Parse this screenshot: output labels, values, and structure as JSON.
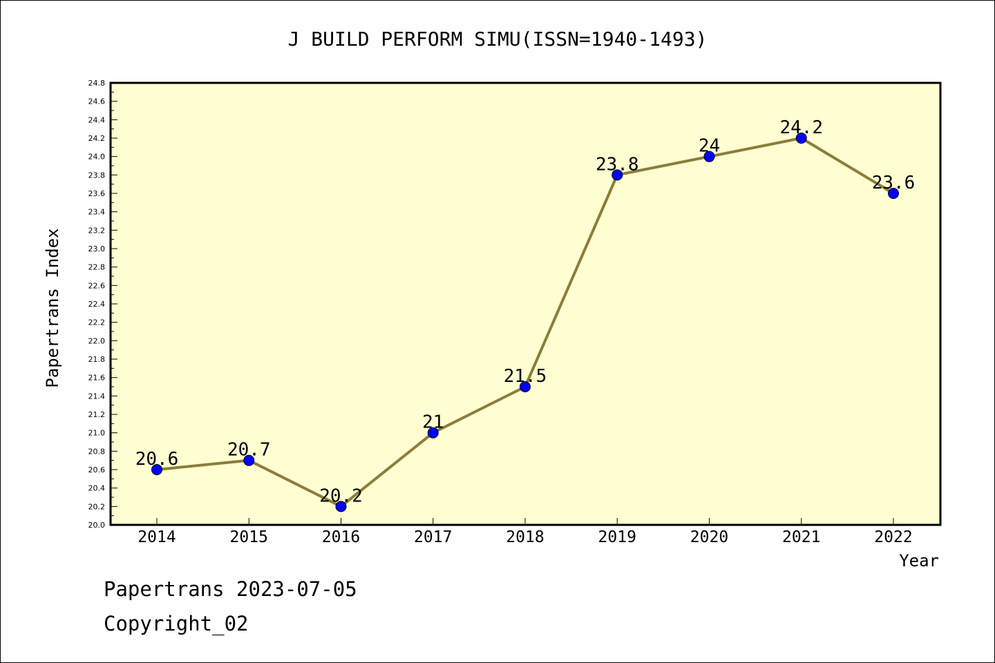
{
  "chart_data": {
    "type": "line",
    "title": "J BUILD PERFORM SIMU(ISSN=1940-1493)",
    "xlabel": "Year",
    "ylabel": "Papertrans Index",
    "categories": [
      "2014",
      "2015",
      "2016",
      "2017",
      "2018",
      "2019",
      "2020",
      "2021",
      "2022"
    ],
    "values": [
      20.6,
      20.7,
      20.2,
      21.0,
      21.5,
      23.8,
      24.0,
      24.2,
      23.6
    ],
    "data_labels": [
      "20.6",
      "20.7",
      "20.2",
      "21",
      "21.5",
      "23.8",
      "24",
      "24.2",
      "23.6"
    ],
    "ylim": [
      20.0,
      24.8
    ],
    "y_ticks": [
      "20.0",
      "20.2",
      "20.4",
      "20.6",
      "20.8",
      "21.0",
      "21.2",
      "21.4",
      "21.6",
      "21.8",
      "22.0",
      "22.2",
      "22.4",
      "22.6",
      "22.8",
      "23.0",
      "23.2",
      "23.4",
      "23.6",
      "23.8",
      "24.0",
      "24.2",
      "24.4",
      "24.6",
      "24.8"
    ],
    "grid": false,
    "legend": "none",
    "colors": {
      "plot_background": "#ffffd2",
      "line": "#8b7d3a",
      "marker": "#0000ff"
    }
  },
  "footer": {
    "date_text": "Papertrans 2023-07-05",
    "copyright_text": "Copyright_02"
  }
}
